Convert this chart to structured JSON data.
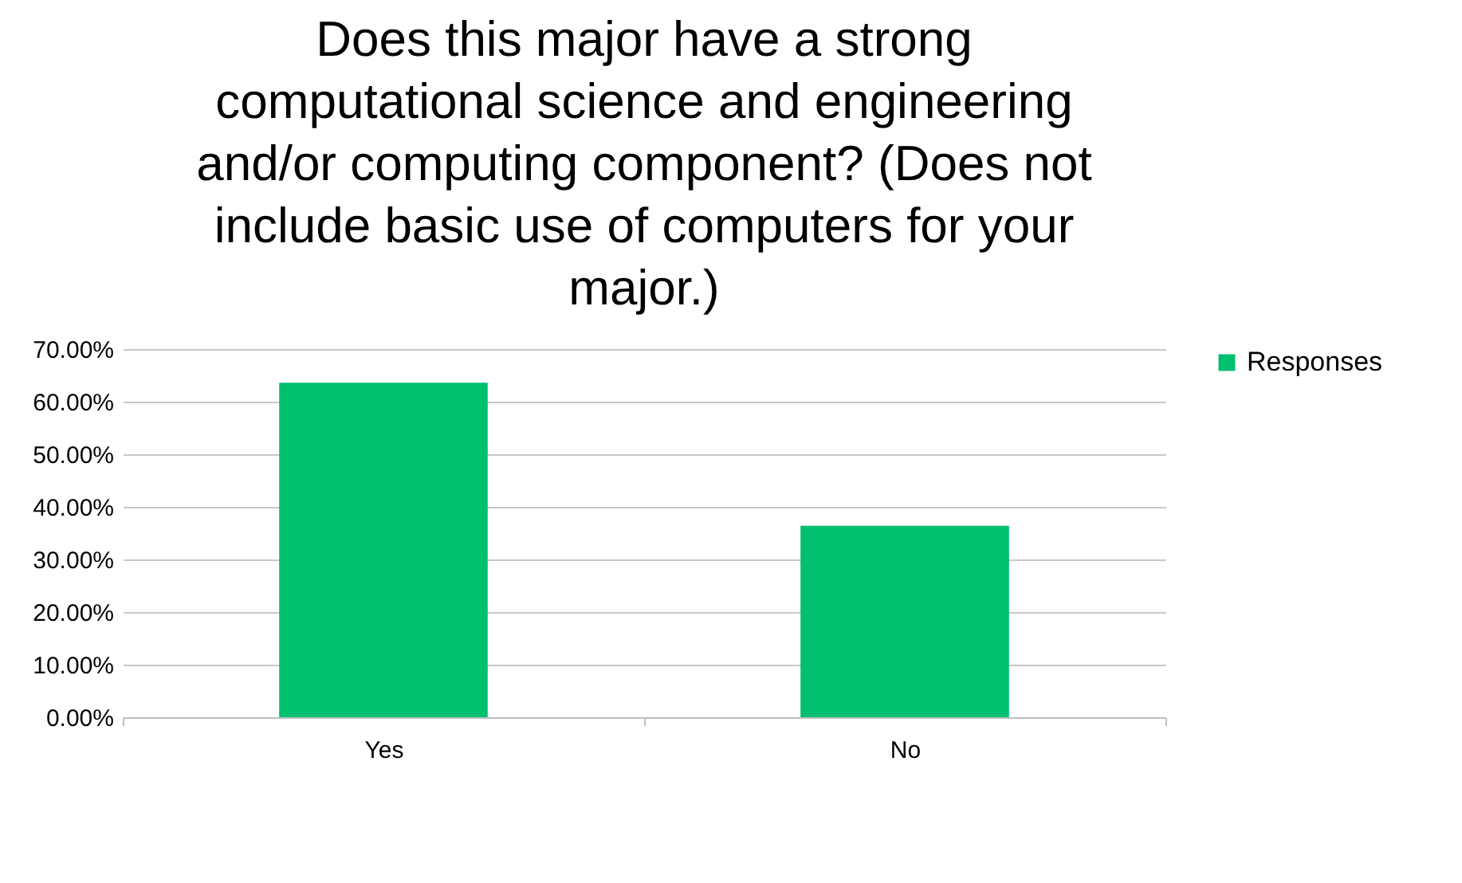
{
  "chart_data": {
    "type": "bar",
    "title": "Does this major have a strong computational science and engineering and/or computing component? (Does not include basic use of computers for your major.)",
    "categories": [
      "Yes",
      "No"
    ],
    "series": [
      {
        "name": "Responses",
        "color": "#00bf6f",
        "values": [
          63.6,
          36.4
        ]
      }
    ],
    "ylim": [
      0,
      70
    ],
    "yticks": [
      {
        "value": 0,
        "label": "0.00%"
      },
      {
        "value": 10,
        "label": "10.00%"
      },
      {
        "value": 20,
        "label": "20.00%"
      },
      {
        "value": 30,
        "label": "30.00%"
      },
      {
        "value": 40,
        "label": "40.00%"
      },
      {
        "value": 50,
        "label": "50.00%"
      },
      {
        "value": 60,
        "label": "60.00%"
      },
      {
        "value": 70,
        "label": "70.00%"
      }
    ],
    "grid": "y",
    "legend": "right"
  }
}
